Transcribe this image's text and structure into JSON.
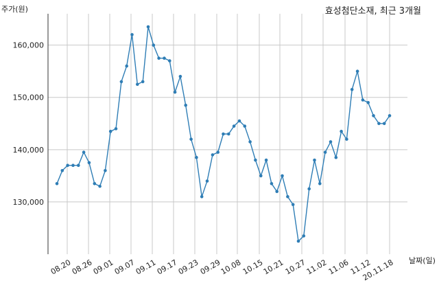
{
  "chart_data": {
    "type": "line",
    "title": "효성첨단소재, 최근 3개월",
    "ylabel": "주가(원)",
    "xlabel": "날짜(일)",
    "ylim": [
      120000,
      166000
    ],
    "yticks": [
      130000,
      140000,
      150000,
      160000
    ],
    "ytick_labels": [
      "130,000",
      "140,000",
      "150,000",
      "160,000"
    ],
    "xtick_labels": [
      "08.20",
      "08.26",
      "09.01",
      "09.07",
      "09.11",
      "09.17",
      "09.23",
      "09.29",
      "10.08",
      "10.15",
      "10.21",
      "10.27",
      "11.02",
      "11.06",
      "11.12",
      "20.11.18"
    ],
    "grid": true,
    "color": "#2e7db5",
    "series": [
      {
        "values": [
          133500,
          136000,
          137000,
          137000,
          137000,
          139500,
          137500,
          133500,
          133000,
          136000,
          143500,
          144000,
          153000,
          156000,
          162000,
          152500,
          153000,
          163500,
          160000,
          157500,
          157500,
          157000,
          151000,
          154000,
          148500,
          142000,
          138500,
          131000,
          134000,
          139000,
          139500,
          143000,
          143000,
          144500,
          145500,
          144500,
          141500,
          138000,
          135000,
          138000,
          133500,
          132000,
          135000,
          131000,
          129500,
          122500,
          123500,
          132500,
          138000,
          133500,
          139500,
          141500,
          138500,
          143500,
          142000,
          151500,
          155000,
          149500,
          149000,
          146500,
          145000,
          145000,
          146500
        ]
      }
    ]
  }
}
